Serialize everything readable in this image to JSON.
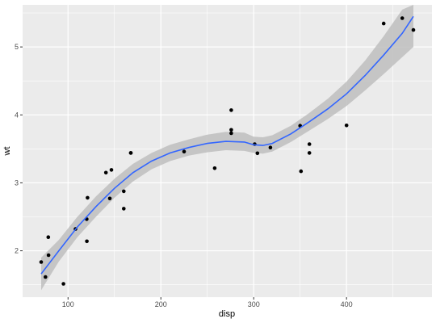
{
  "chart_data": {
    "type": "scatter",
    "title": "",
    "xlabel": "disp",
    "ylabel": "wt",
    "xlim": [
      71.1,
      472.0
    ],
    "ylim": [
      1.513,
      5.424
    ],
    "x_ticks": [
      100,
      200,
      300,
      400
    ],
    "y_ticks": [
      2,
      3,
      4,
      5
    ],
    "x_tick_labels": [
      "100",
      "200",
      "300",
      "400"
    ],
    "y_tick_labels": [
      "2",
      "3",
      "4",
      "5"
    ],
    "grid": true,
    "legend": "none",
    "colors": {
      "panel": "#EBEBEB",
      "grid": "#FFFFFF",
      "points": "#000000",
      "smooth_line": "#3366FF",
      "ribbon": "#BEBEBE"
    },
    "points": [
      {
        "x": 160.0,
        "y": 2.62
      },
      {
        "x": 160.0,
        "y": 2.875
      },
      {
        "x": 108.0,
        "y": 2.32
      },
      {
        "x": 258.0,
        "y": 3.215
      },
      {
        "x": 360.0,
        "y": 3.44
      },
      {
        "x": 225.0,
        "y": 3.46
      },
      {
        "x": 360.0,
        "y": 3.57
      },
      {
        "x": 146.7,
        "y": 3.19
      },
      {
        "x": 140.8,
        "y": 3.15
      },
      {
        "x": 167.6,
        "y": 3.44
      },
      {
        "x": 167.6,
        "y": 3.44
      },
      {
        "x": 275.8,
        "y": 4.07
      },
      {
        "x": 275.8,
        "y": 3.73
      },
      {
        "x": 275.8,
        "y": 3.78
      },
      {
        "x": 472.0,
        "y": 5.25
      },
      {
        "x": 460.0,
        "y": 5.424
      },
      {
        "x": 440.0,
        "y": 5.345
      },
      {
        "x": 78.7,
        "y": 2.2
      },
      {
        "x": 75.7,
        "y": 1.615
      },
      {
        "x": 71.1,
        "y": 1.835
      },
      {
        "x": 120.1,
        "y": 2.465
      },
      {
        "x": 318.0,
        "y": 3.52
      },
      {
        "x": 304.0,
        "y": 3.435
      },
      {
        "x": 350.0,
        "y": 3.84
      },
      {
        "x": 400.0,
        "y": 3.845
      },
      {
        "x": 79.0,
        "y": 1.935
      },
      {
        "x": 120.3,
        "y": 2.14
      },
      {
        "x": 95.1,
        "y": 1.513
      },
      {
        "x": 351.0,
        "y": 3.17
      },
      {
        "x": 145.0,
        "y": 2.77
      },
      {
        "x": 301.0,
        "y": 3.57
      },
      {
        "x": 121.0,
        "y": 2.78
      }
    ],
    "smooth": {
      "method": "loess",
      "x": [
        71.1,
        90,
        110,
        130,
        150,
        170,
        190,
        210,
        230,
        250,
        270,
        290,
        300,
        310,
        320,
        340,
        360,
        380,
        400,
        420,
        440,
        460,
        472
      ],
      "y": [
        1.66,
        2.0,
        2.35,
        2.65,
        2.92,
        3.15,
        3.32,
        3.44,
        3.52,
        3.58,
        3.61,
        3.6,
        3.56,
        3.55,
        3.58,
        3.72,
        3.9,
        4.09,
        4.31,
        4.58,
        4.88,
        5.2,
        5.45
      ],
      "lower": [
        1.42,
        1.84,
        2.2,
        2.5,
        2.78,
        3.02,
        3.2,
        3.32,
        3.4,
        3.45,
        3.48,
        3.47,
        3.44,
        3.43,
        3.46,
        3.6,
        3.77,
        3.94,
        4.13,
        4.36,
        4.6,
        4.85,
        5.0
      ],
      "upper": [
        1.9,
        2.16,
        2.5,
        2.8,
        3.06,
        3.28,
        3.44,
        3.56,
        3.64,
        3.71,
        3.75,
        3.74,
        3.68,
        3.67,
        3.7,
        3.84,
        4.03,
        4.24,
        4.49,
        4.8,
        5.16,
        5.55,
        5.9
      ]
    }
  }
}
